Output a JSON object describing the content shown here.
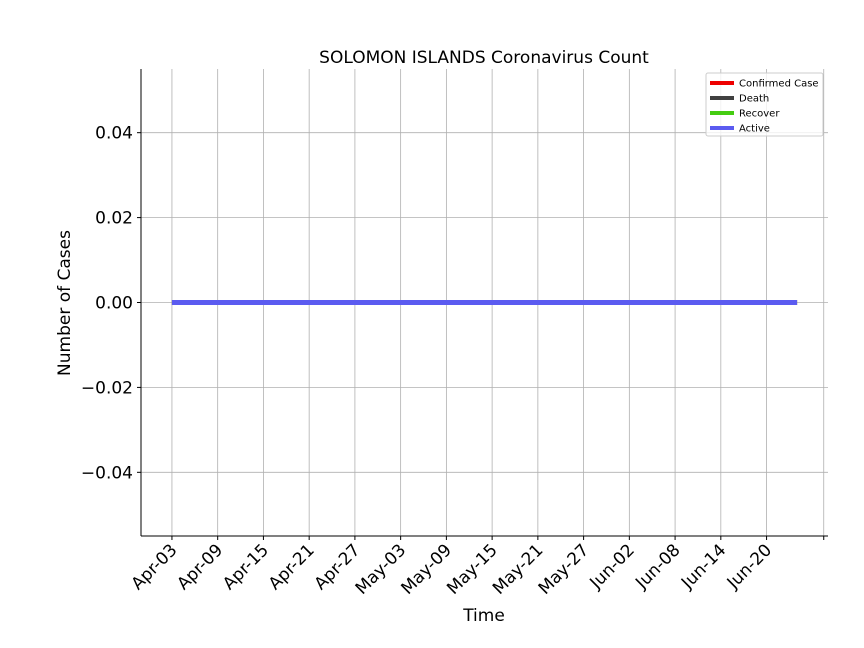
{
  "chart_data": {
    "type": "line",
    "title": "SOLOMON ISLANDS Coronavirus Count",
    "xlabel": "Time",
    "ylabel": "Number of Cases",
    "x_start": "2020-04-03",
    "x_end": "2020-06-24",
    "x_ticks": [
      "Apr-03",
      "Apr-09",
      "Apr-15",
      "Apr-21",
      "Apr-27",
      "May-03",
      "May-09",
      "May-15",
      "May-21",
      "May-27",
      "Jun-02",
      "Jun-08",
      "Jun-14",
      "Jun-20"
    ],
    "x_tick_dates": [
      "2020-04-03",
      "2020-04-09",
      "2020-04-15",
      "2020-04-21",
      "2020-04-27",
      "2020-05-03",
      "2020-05-09",
      "2020-05-15",
      "2020-05-21",
      "2020-05-27",
      "2020-06-02",
      "2020-06-08",
      "2020-06-14",
      "2020-06-20"
    ],
    "ylim": [
      -0.055,
      0.055
    ],
    "y_ticks": [
      0.04,
      0.02,
      0.0,
      -0.02,
      -0.04
    ],
    "y_tick_labels": [
      "0.04",
      "0.02",
      "0.00",
      "−0.02",
      "−0.04"
    ],
    "grid": true,
    "legend_position": "top-right",
    "series": [
      {
        "name": "Confirmed Case",
        "color": "#ee0000",
        "values": [
          0,
          0
        ]
      },
      {
        "name": "Death",
        "color": "#404040",
        "values": [
          0,
          0
        ]
      },
      {
        "name": "Recover",
        "color": "#44cc11",
        "values": [
          0,
          0
        ]
      },
      {
        "name": "Active",
        "color": "#5b5bf0",
        "values": [
          0,
          0
        ]
      }
    ]
  }
}
